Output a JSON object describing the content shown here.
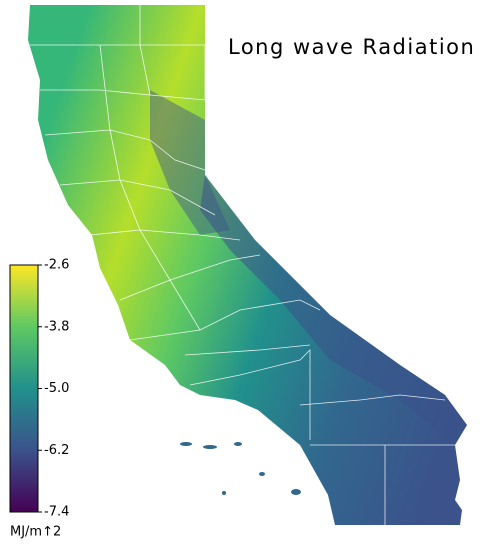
{
  "title": "Long wave Radiation",
  "colorbar": {
    "ylim": [
      -7.4,
      -2.6
    ],
    "yticks": [
      -2.6,
      -3.8,
      {
        "value": -5,
        "label": "-5.0"
      },
      -6.2,
      -7.4
    ],
    "unit": "MJ/m↑2",
    "colormap": [
      "#440154",
      "#3b528b",
      "#21918c",
      "#5ec962",
      "#fde725"
    ]
  }
}
